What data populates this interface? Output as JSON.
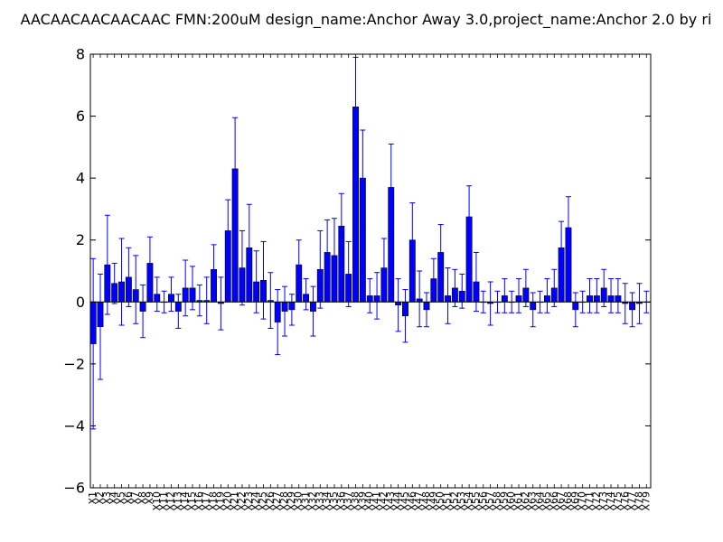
{
  "chart_data": {
    "type": "bar",
    "title": "AACAACAACAACAAC  FMN:200uM  design_name:Anchor Away 3.0,project_name:Anchor 2.0 by ri",
    "xlabel": "",
    "ylabel": "",
    "ylim": [
      -6,
      8
    ],
    "yticks": [
      -6,
      -4,
      -2,
      0,
      2,
      4,
      6,
      8
    ],
    "grid": false,
    "bar_color": "#0000ff",
    "error_color": "#0000ff",
    "categories": [
      "X1",
      "X2",
      "X3",
      "X4",
      "X5",
      "X6",
      "X7",
      "X8",
      "X9",
      "X10",
      "X11",
      "X12",
      "X13",
      "X14",
      "X15",
      "X16",
      "X17",
      "X18",
      "X19",
      "X20",
      "X21",
      "X22",
      "X23",
      "X24",
      "X25",
      "X26",
      "X27",
      "X28",
      "X29",
      "X30",
      "X31",
      "X32",
      "X33",
      "X34",
      "X35",
      "X36",
      "X37",
      "X38",
      "X39",
      "X40",
      "X41",
      "X42",
      "X43",
      "X44",
      "X45",
      "X46",
      "X47",
      "X48",
      "X49",
      "X50",
      "X51",
      "X52",
      "X53",
      "X54",
      "X55",
      "X56",
      "X57",
      "X58",
      "X59",
      "X60",
      "X61",
      "X62",
      "X63",
      "X64",
      "X65",
      "X66",
      "X67",
      "X68",
      "X69",
      "X70",
      "X71",
      "X72",
      "X73",
      "X74",
      "X75",
      "X76",
      "X77",
      "X78",
      "X79"
    ],
    "values": [
      -1.35,
      -0.8,
      1.2,
      0.6,
      0.65,
      0.8,
      0.4,
      -0.3,
      1.25,
      0.25,
      0.0,
      0.25,
      -0.3,
      0.45,
      0.45,
      0.05,
      0.05,
      1.05,
      -0.05,
      2.3,
      4.3,
      1.1,
      1.75,
      0.65,
      0.7,
      0.05,
      -0.65,
      -0.3,
      -0.25,
      1.2,
      0.25,
      -0.3,
      1.05,
      1.6,
      1.5,
      2.45,
      0.9,
      6.3,
      4.0,
      0.2,
      0.2,
      1.1,
      3.7,
      -0.1,
      -0.45,
      2.0,
      0.1,
      -0.25,
      0.75,
      1.6,
      0.2,
      0.45,
      0.35,
      2.75,
      0.65,
      0.0,
      -0.05,
      0.0,
      0.2,
      0.0,
      0.2,
      0.45,
      -0.25,
      0.0,
      0.2,
      0.45,
      1.75,
      2.4,
      -0.25,
      0.0,
      0.2,
      0.2,
      0.45,
      0.2,
      0.2,
      -0.05,
      -0.25,
      -0.05,
      0.0
    ],
    "errors": [
      2.75,
      1.7,
      1.6,
      0.65,
      1.4,
      0.95,
      1.1,
      0.85,
      0.85,
      0.55,
      0.35,
      0.55,
      0.55,
      0.9,
      0.7,
      0.5,
      0.75,
      0.8,
      0.85,
      1.0,
      1.65,
      1.2,
      1.4,
      1.0,
      1.25,
      0.9,
      1.05,
      0.8,
      0.5,
      0.8,
      0.5,
      0.8,
      1.25,
      1.05,
      1.2,
      1.05,
      1.05,
      1.6,
      1.55,
      0.55,
      0.75,
      0.95,
      1.4,
      0.85,
      0.85,
      1.2,
      0.9,
      0.55,
      0.65,
      0.9,
      0.9,
      0.6,
      0.55,
      1.0,
      0.95,
      0.35,
      0.7,
      0.35,
      0.55,
      0.35,
      0.55,
      0.6,
      0.55,
      0.35,
      0.55,
      0.6,
      0.85,
      1.0,
      0.55,
      0.35,
      0.55,
      0.55,
      0.6,
      0.55,
      0.55,
      0.65,
      0.55,
      0.65,
      0.35
    ]
  }
}
